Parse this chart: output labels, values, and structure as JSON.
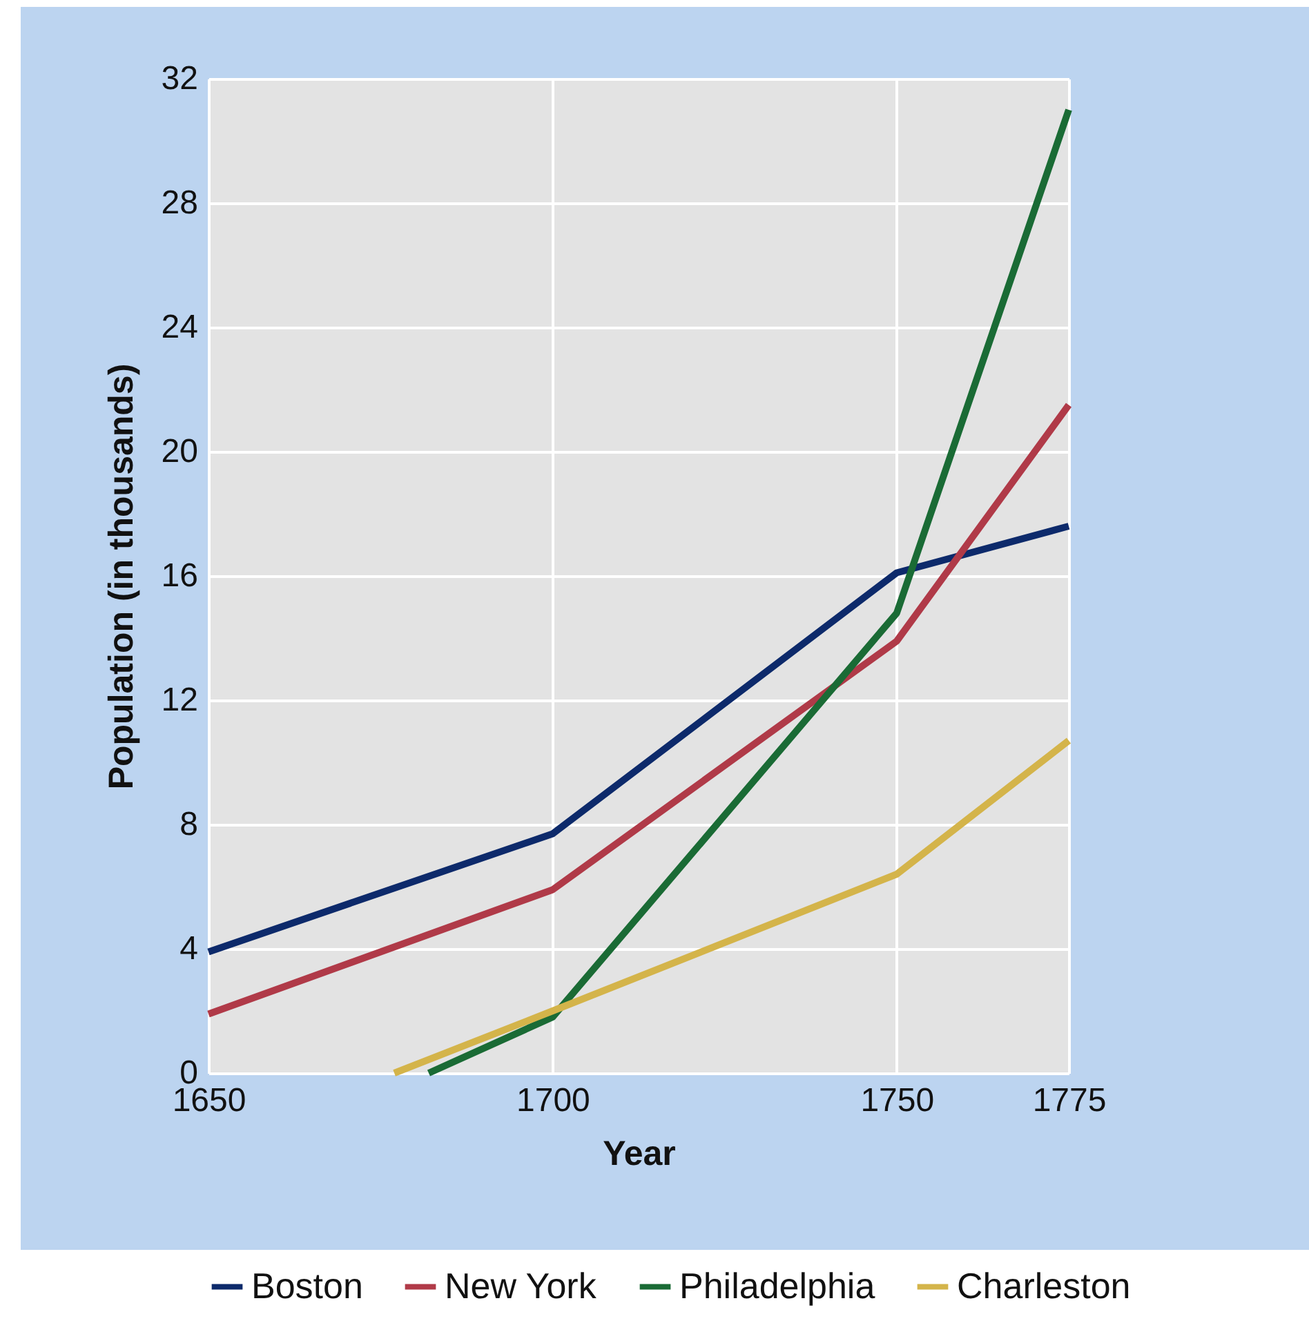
{
  "chart_data": {
    "type": "line",
    "xlabel": "Year",
    "ylabel": "Population (in thousands)",
    "x": [
      1650,
      1700,
      1750,
      1775
    ],
    "series": [
      {
        "name": "Boston",
        "color": "#0d2a6b",
        "values": [
          3.9,
          7.7,
          16.1,
          17.6
        ]
      },
      {
        "name": "New York",
        "color": "#b03a48",
        "values": [
          1.9,
          5.9,
          13.9,
          21.5
        ]
      },
      {
        "name": "Philadelphia",
        "color": "#1a6b35",
        "x": [
          1682,
          1700,
          1750,
          1775
        ],
        "values": [
          0,
          1.8,
          14.8,
          31
        ]
      },
      {
        "name": "Charleston",
        "color": "#d4b44a",
        "x": [
          1677,
          1700,
          1750,
          1775
        ],
        "values": [
          0,
          2,
          6.4,
          10.7
        ]
      }
    ],
    "xlim": [
      1650,
      1775
    ],
    "xticks": [
      1650,
      1700,
      1750,
      1775
    ],
    "ylim": [
      0,
      32
    ],
    "yticks": [
      0,
      4,
      8,
      12,
      16,
      20,
      24,
      28,
      32
    ],
    "grid": true,
    "legend": "bottom"
  }
}
